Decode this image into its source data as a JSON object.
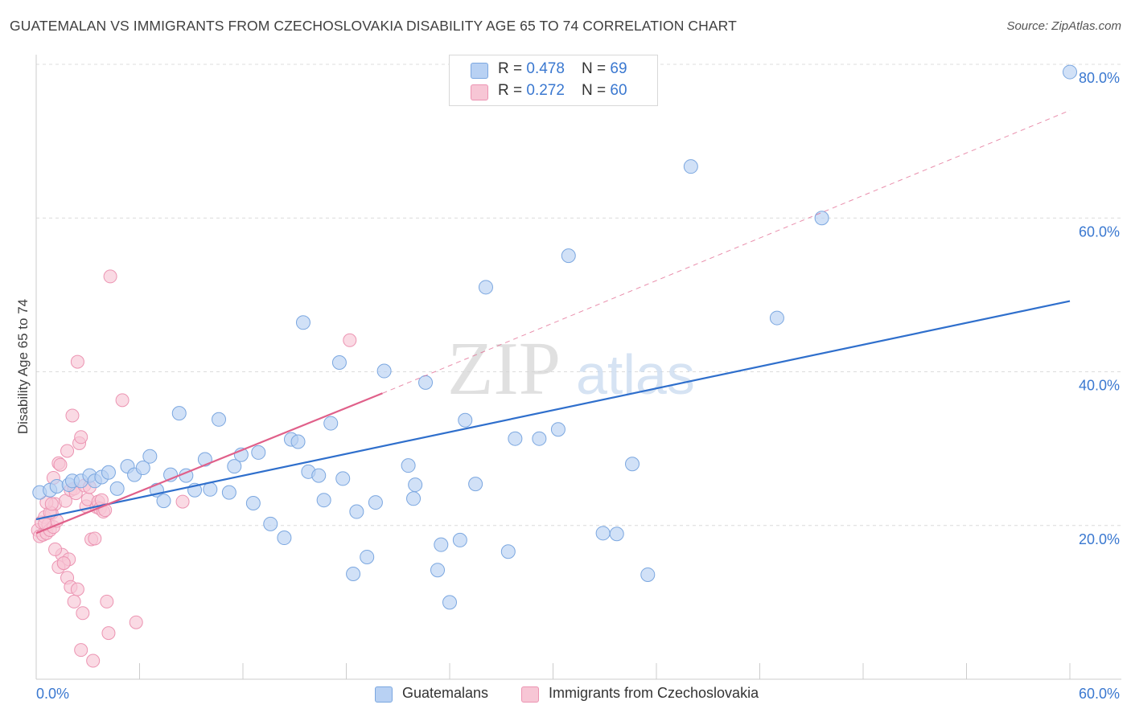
{
  "header": {
    "title": "GUATEMALAN VS IMMIGRANTS FROM CZECHOSLOVAKIA DISABILITY AGE 65 TO 74 CORRELATION CHART",
    "source": "Source: ZipAtlas.com"
  },
  "legend": {
    "rows": [
      {
        "r_label": "R = ",
        "r_value": "0.478",
        "n_label": "N = ",
        "n_value": "69"
      },
      {
        "r_label": "R = ",
        "r_value": "0.272",
        "n_label": "N = ",
        "n_value": "60"
      }
    ]
  },
  "bottom_legend": {
    "items": [
      {
        "label": "Guatemalans"
      },
      {
        "label": "Immigrants from Czechoslovakia"
      }
    ]
  },
  "watermark": {
    "zip": "ZIP",
    "atlas": "atlas"
  },
  "colors": {
    "blue_fill": "#b8d1f3",
    "blue_stroke": "#7ba7e0",
    "blue_line": "#2f6fcc",
    "pink_fill": "#f7c6d5",
    "pink_stroke": "#ec94b2",
    "pink_line": "#e0608a",
    "tick_label": "#3a78d0",
    "grid": "#dcdcdc"
  },
  "chart_data": {
    "type": "scatter",
    "title": "GUATEMALAN VS IMMIGRANTS FROM CZECHOSLOVAKIA DISABILITY AGE 65 TO 74 CORRELATION CHART",
    "xlabel": "",
    "ylabel": "Disability Age 65 to 74",
    "xlim": [
      0,
      60
    ],
    "ylim": [
      0,
      80
    ],
    "x_tick_labels": [
      "0.0%",
      "60.0%"
    ],
    "y_tick_labels": [
      "20.0%",
      "40.0%",
      "60.0%",
      "80.0%"
    ],
    "y_ticks": [
      20,
      40,
      60,
      80
    ],
    "grid": true,
    "legend_position": "top-center",
    "series": [
      {
        "name": "Guatemalans",
        "color": "#b8d1f3",
        "r": 0.478,
        "n": 69,
        "trend": {
          "x": [
            0,
            60
          ],
          "y": [
            20.8,
            49.2
          ],
          "dashed": false
        },
        "points": [
          [
            0.2,
            24.3
          ],
          [
            0.8,
            24.6
          ],
          [
            1.2,
            25.1
          ],
          [
            1.9,
            25.3
          ],
          [
            2.1,
            25.8
          ],
          [
            2.6,
            25.8
          ],
          [
            3.1,
            26.5
          ],
          [
            3.4,
            25.8
          ],
          [
            3.8,
            26.3
          ],
          [
            4.2,
            26.9
          ],
          [
            4.7,
            24.8
          ],
          [
            5.3,
            27.7
          ],
          [
            5.7,
            26.6
          ],
          [
            6.2,
            27.5
          ],
          [
            6.6,
            29.0
          ],
          [
            7.0,
            24.6
          ],
          [
            7.4,
            23.2
          ],
          [
            7.8,
            26.6
          ],
          [
            8.3,
            34.6
          ],
          [
            8.7,
            26.5
          ],
          [
            9.2,
            24.6
          ],
          [
            9.8,
            28.6
          ],
          [
            10.1,
            24.7
          ],
          [
            10.6,
            33.8
          ],
          [
            11.2,
            24.3
          ],
          [
            11.5,
            27.7
          ],
          [
            11.9,
            29.2
          ],
          [
            12.6,
            22.9
          ],
          [
            12.9,
            29.5
          ],
          [
            13.6,
            20.2
          ],
          [
            14.4,
            18.4
          ],
          [
            14.8,
            31.2
          ],
          [
            15.2,
            30.9
          ],
          [
            15.5,
            46.4
          ],
          [
            15.8,
            27.0
          ],
          [
            16.4,
            26.5
          ],
          [
            16.7,
            23.3
          ],
          [
            17.1,
            33.3
          ],
          [
            17.6,
            41.2
          ],
          [
            17.8,
            26.1
          ],
          [
            18.6,
            21.8
          ],
          [
            19.2,
            15.9
          ],
          [
            19.7,
            23.0
          ],
          [
            20.2,
            40.1
          ],
          [
            21.6,
            27.8
          ],
          [
            21.9,
            23.5
          ],
          [
            22.0,
            25.3
          ],
          [
            22.6,
            38.6
          ],
          [
            23.3,
            14.2
          ],
          [
            23.5,
            17.5
          ],
          [
            24.0,
            10.0
          ],
          [
            24.6,
            18.1
          ],
          [
            24.9,
            33.7
          ],
          [
            25.5,
            25.4
          ],
          [
            26.1,
            51.0
          ],
          [
            27.4,
            16.6
          ],
          [
            27.8,
            31.3
          ],
          [
            29.2,
            31.3
          ],
          [
            30.3,
            32.5
          ],
          [
            30.9,
            55.1
          ],
          [
            32.9,
            19.0
          ],
          [
            33.7,
            18.9
          ],
          [
            34.6,
            28.0
          ],
          [
            35.5,
            13.6
          ],
          [
            38.0,
            66.7
          ],
          [
            18.4,
            13.7
          ],
          [
            43.0,
            47.0
          ],
          [
            45.6,
            60.0
          ],
          [
            60.0,
            79.0
          ]
        ]
      },
      {
        "name": "Immigrants from Czechoslovakia",
        "color": "#f7c6d5",
        "r": 0.272,
        "n": 60,
        "trend": {
          "x": [
            0,
            20.1
          ],
          "y": [
            19.0,
            37.2
          ],
          "dashed": false,
          "extension": {
            "x": [
              20.1,
              60
            ],
            "y": [
              37.2,
              74.0
            ],
            "dashed": true
          }
        },
        "points": [
          [
            0.1,
            19.4
          ],
          [
            0.2,
            18.6
          ],
          [
            0.3,
            20.4
          ],
          [
            0.4,
            18.8
          ],
          [
            0.5,
            21.1
          ],
          [
            0.6,
            19.0
          ],
          [
            0.7,
            20.1
          ],
          [
            0.8,
            19.4
          ],
          [
            0.9,
            21.6
          ],
          [
            1.0,
            19.8
          ],
          [
            1.1,
            22.8
          ],
          [
            1.2,
            20.6
          ],
          [
            1.3,
            28.1
          ],
          [
            1.4,
            27.9
          ],
          [
            1.5,
            16.2
          ],
          [
            1.6,
            15.1
          ],
          [
            1.7,
            23.2
          ],
          [
            1.8,
            29.7
          ],
          [
            1.9,
            15.6
          ],
          [
            2.0,
            24.6
          ],
          [
            2.1,
            34.3
          ],
          [
            2.2,
            24.8
          ],
          [
            2.3,
            24.2
          ],
          [
            2.4,
            41.3
          ],
          [
            2.5,
            30.7
          ],
          [
            2.6,
            31.5
          ],
          [
            2.7,
            8.6
          ],
          [
            2.8,
            25.2
          ],
          [
            2.9,
            22.5
          ],
          [
            3.0,
            23.4
          ],
          [
            3.1,
            25.0
          ],
          [
            3.2,
            18.2
          ],
          [
            3.3,
            2.4
          ],
          [
            3.4,
            18.3
          ],
          [
            3.5,
            22.4
          ],
          [
            3.6,
            23.1
          ],
          [
            3.7,
            22.2
          ],
          [
            3.8,
            23.3
          ],
          [
            3.9,
            21.8
          ],
          [
            4.0,
            22.0
          ],
          [
            4.1,
            10.1
          ],
          [
            4.2,
            6.0
          ],
          [
            4.3,
            52.4
          ],
          [
            5.0,
            36.3
          ],
          [
            5.8,
            7.4
          ],
          [
            8.5,
            23.1
          ],
          [
            18.2,
            44.1
          ],
          [
            0.5,
            20.3
          ],
          [
            0.8,
            21.7
          ],
          [
            1.0,
            26.2
          ],
          [
            1.1,
            16.9
          ],
          [
            1.3,
            14.6
          ],
          [
            1.6,
            15.1
          ],
          [
            1.8,
            13.2
          ],
          [
            2.0,
            12.0
          ],
          [
            2.2,
            10.1
          ],
          [
            2.4,
            11.7
          ],
          [
            2.6,
            3.8
          ],
          [
            0.6,
            23.0
          ],
          [
            0.9,
            22.8
          ]
        ]
      }
    ]
  }
}
